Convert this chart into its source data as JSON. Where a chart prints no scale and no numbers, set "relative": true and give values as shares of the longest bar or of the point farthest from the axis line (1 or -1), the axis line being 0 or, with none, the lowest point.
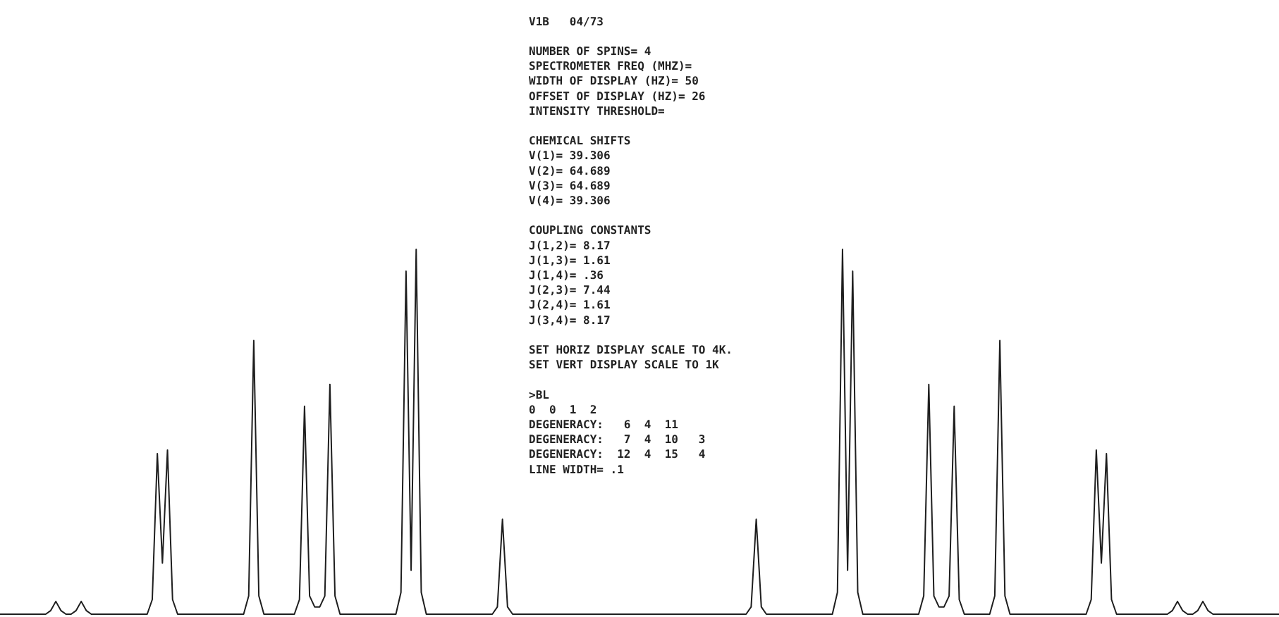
{
  "chart_data": {
    "type": "line",
    "relative": true,
    "color": "#1e1e1e",
    "line_style": "solid",
    "categories": [
      null,
      null,
      null,
      null,
      null,
      null,
      null,
      null,
      null,
      null,
      null,
      null,
      null,
      null,
      null,
      null,
      null,
      null,
      null,
      null,
      null,
      null,
      null,
      null,
      null,
      null,
      null,
      null,
      null,
      null,
      null,
      null,
      null,
      null,
      null,
      null,
      null,
      null,
      null,
      null,
      null,
      null,
      null,
      null,
      null,
      null,
      null,
      null,
      null,
      null,
      null,
      null,
      null,
      null,
      null,
      null,
      null,
      null,
      null,
      null,
      null,
      null,
      null,
      null,
      null,
      null,
      null,
      null,
      null,
      null,
      null,
      null,
      null,
      null,
      null,
      null,
      null,
      null,
      null,
      null,
      null,
      null,
      null,
      null,
      null,
      null,
      null,
      null,
      null,
      null,
      null,
      null,
      null,
      null,
      null,
      null,
      null,
      null,
      null,
      null,
      null,
      null,
      null,
      null,
      null,
      null,
      null,
      null,
      null,
      null,
      null,
      null,
      null,
      null,
      null,
      null,
      null,
      null,
      null,
      null,
      null,
      null,
      null,
      null,
      null,
      null,
      null,
      null,
      null,
      null,
      null,
      null,
      null,
      null,
      null,
      null,
      null,
      null,
      null,
      null,
      null,
      null,
      null,
      null,
      null,
      null,
      null,
      null,
      null,
      null,
      null,
      null,
      null,
      null,
      null,
      null,
      null,
      null,
      null,
      null,
      null,
      null,
      null,
      null,
      null,
      null,
      null,
      null,
      null,
      null,
      null,
      null,
      null,
      null,
      null,
      null,
      null,
      null,
      null,
      null,
      null,
      null,
      null,
      null,
      null,
      null,
      null,
      null,
      null,
      null,
      null,
      null,
      null,
      null,
      null,
      null,
      null,
      null,
      null,
      null,
      null,
      null,
      null,
      null,
      null,
      null,
      null,
      null,
      null,
      null,
      null,
      null,
      null,
      null,
      null,
      null,
      null,
      null,
      null,
      null,
      null,
      null,
      null,
      null,
      null,
      null,
      null,
      null,
      null,
      null,
      null,
      null,
      null,
      null,
      null,
      null,
      null,
      null,
      null,
      null,
      null,
      null,
      null,
      null,
      null,
      null,
      null,
      null,
      null,
      null,
      null,
      null,
      null
    ],
    "values": [
      0,
      0,
      0,
      0,
      0,
      0,
      0,
      0,
      0,
      0,
      0.01,
      0.035,
      0.01,
      0,
      0,
      0.01,
      0.035,
      0.01,
      0,
      0,
      0,
      0,
      0,
      0,
      0,
      0,
      0,
      0,
      0,
      0,
      0.04,
      0.44,
      0.14,
      0.45,
      0.04,
      0,
      0,
      0,
      0,
      0,
      0,
      0,
      0,
      0,
      0,
      0,
      0,
      0,
      0,
      0.05,
      0.75,
      0.05,
      0,
      0,
      0,
      0,
      0,
      0,
      0,
      0.04,
      0.57,
      0.05,
      0.02,
      0.02,
      0.05,
      0.63,
      0.05,
      0,
      0,
      0,
      0,
      0,
      0,
      0,
      0,
      0,
      0,
      0,
      0,
      0.06,
      0.94,
      0.12,
      1,
      0.06,
      0,
      0,
      0,
      0,
      0,
      0,
      0,
      0,
      0,
      0,
      0,
      0,
      0,
      0,
      0.02,
      0.26,
      0.02,
      0,
      0,
      0,
      0,
      0,
      0,
      0,
      0,
      0,
      0,
      0,
      0,
      0,
      0,
      0,
      0,
      0,
      0,
      0,
      0,
      0,
      0,
      0,
      0,
      0,
      0,
      0,
      0,
      0,
      0,
      0,
      0,
      0,
      0,
      0,
      0,
      0,
      0,
      0,
      0,
      0,
      0,
      0,
      0,
      0,
      0,
      0,
      0.02,
      0.26,
      0.02,
      0,
      0,
      0,
      0,
      0,
      0,
      0,
      0,
      0,
      0,
      0,
      0,
      0,
      0,
      0.06,
      1,
      0.12,
      0.94,
      0.06,
      0,
      0,
      0,
      0,
      0,
      0,
      0,
      0,
      0,
      0,
      0,
      0,
      0.05,
      0.63,
      0.05,
      0.02,
      0.02,
      0.05,
      0.57,
      0.04,
      0,
      0,
      0,
      0,
      0,
      0,
      0.05,
      0.75,
      0.05,
      0,
      0,
      0,
      0,
      0,
      0,
      0,
      0,
      0,
      0,
      0,
      0,
      0,
      0,
      0,
      0,
      0.04,
      0.45,
      0.14,
      0.44,
      0.04,
      0,
      0,
      0,
      0,
      0,
      0,
      0,
      0,
      0,
      0,
      0,
      0.01,
      0.035,
      0.01,
      0,
      0,
      0.01,
      0.035,
      0.01,
      0,
      0,
      0,
      0,
      0,
      0,
      0,
      0,
      0,
      0,
      0,
      0,
      0,
      0
    ],
    "annotations": [
      "V1B   04/73",
      "NUMBER OF SPINS= 4\nSPECTROMETER FREQ (MHZ)=\nWIDTH OF DISPLAY (HZ)= 50\nOFFSET OF DISPLAY (HZ)= 26\nINTENSITY THRESHOLD=",
      "CHEMICAL SHIFTS\nV(1)= 39.306\nV(2)= 64.689\nV(3)= 64.689\nV(4)= 39.306",
      "COUPLING CONSTANTS\nJ(1,2)= 8.17\nJ(1,3)= 1.61\nJ(1,4)= .36\nJ(2,3)= 7.44\nJ(2,4)= 1.61\nJ(3,4)= 8.17",
      "SET HORIZ DISPLAY SCALE TO 4K.\nSET VERT DISPLAY SCALE TO 1K",
      ">BL\n0  0  1  2\nDEGENERACY:   6  4  11\nDEGENERACY:   7  4  10   3\nDEGENERACY:  12  4  15   4\nLINE WIDTH= .1"
    ]
  }
}
